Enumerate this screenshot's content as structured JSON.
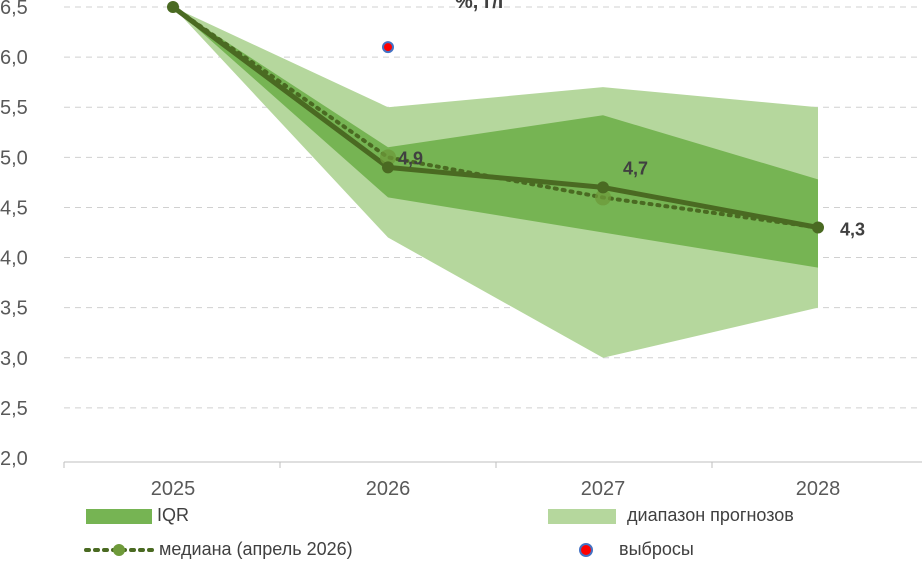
{
  "chart_data": {
    "type": "line",
    "title": "%, г/г",
    "categories": [
      "2025",
      "2026",
      "2027",
      "2028"
    ],
    "ylim": [
      2.0,
      6.5
    ],
    "yticks": [
      "2,0",
      "2,5",
      "3,0",
      "3,5",
      "4,0",
      "4,5",
      "5,0",
      "5,5",
      "6,0",
      "6,5"
    ],
    "ytick_values": [
      2.0,
      2.5,
      3.0,
      3.5,
      4.0,
      4.5,
      5.0,
      5.5,
      6.0,
      6.5
    ],
    "grid": true,
    "forecast_range": {
      "name": "диапазон прогнозов",
      "low": [
        6.5,
        4.2,
        3.0,
        3.5
      ],
      "high": [
        6.5,
        5.5,
        5.7,
        5.5
      ],
      "color": "#b5d79d"
    },
    "iqr": {
      "name": "IQR",
      "low": [
        6.5,
        4.6,
        4.25,
        3.9
      ],
      "high": [
        6.5,
        5.1,
        5.42,
        4.78
      ],
      "color": "#76b453"
    },
    "current_median": {
      "values": [
        6.5,
        4.9,
        4.7,
        4.3
      ],
      "labels": [
        "",
        "4,9",
        "4,7",
        "4,3"
      ],
      "color": "#4a6a22"
    },
    "median_april_2026": {
      "name": "медиана (апрель 2026)",
      "values": [
        6.5,
        5.0,
        4.6,
        4.3
      ],
      "color": "#6e9a3a"
    },
    "outliers": {
      "name": "выбросы",
      "points": [
        {
          "x": "2026",
          "y": 6.1
        }
      ],
      "fill": "#ff0000",
      "stroke": "#4472c4"
    },
    "legend": [
      "IQR",
      "диапазон прогнозов",
      "медиана (апрель 2026)",
      "выбросы"
    ]
  }
}
